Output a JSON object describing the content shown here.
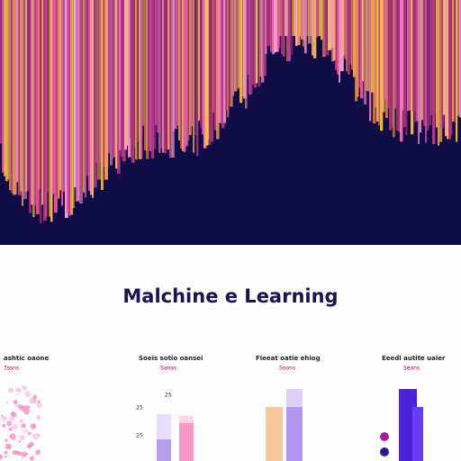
{
  "hero": {
    "title": "Malchine e Learning"
  },
  "panels": [
    {
      "heading": "ashtic oaone",
      "subheading": "3ssns"
    },
    {
      "heading": "Soeis sotio oansei",
      "subheading": "Sanas",
      "ticks": [
        "25",
        "25",
        "25"
      ]
    },
    {
      "heading": "Fieeat oatie ehiog",
      "subheading": "Soons"
    },
    {
      "heading": "Eeedl autite uaier",
      "subheading": "Seans"
    }
  ]
}
